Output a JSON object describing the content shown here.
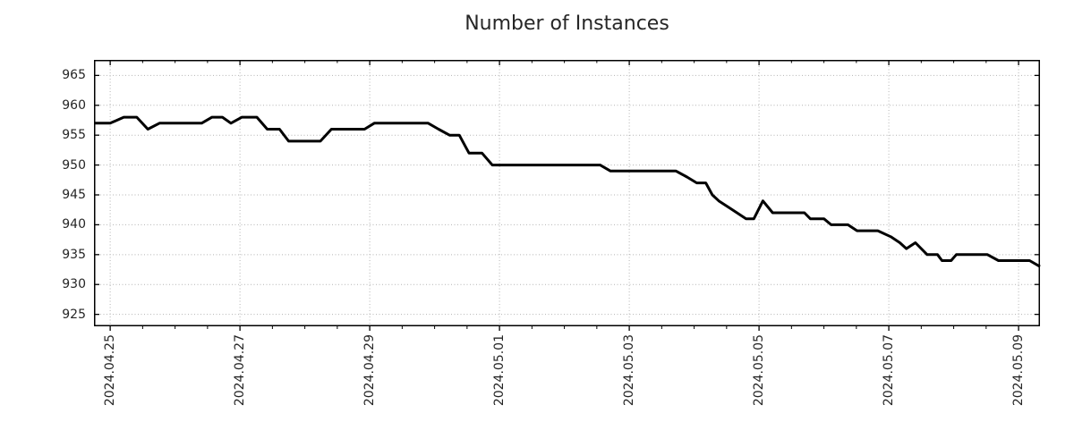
{
  "chart_data": {
    "type": "line",
    "title": "Number of Instances",
    "xlabel": "",
    "ylabel": "",
    "grid": "dotted",
    "legend": "none",
    "xlim_days": [
      -0.25,
      14.33
    ],
    "ylim": [
      923.0,
      967.6
    ],
    "x_axis": {
      "unit": "date",
      "major_tick_days": [
        0,
        2,
        4,
        6,
        8,
        10,
        12,
        14
      ],
      "major_tick_labels": [
        "2024.04.25",
        "2024.04.27",
        "2024.04.29",
        "2024.05.01",
        "2024.05.03",
        "2024.05.05",
        "2024.05.07",
        "2024.05.09"
      ],
      "minor_tick_interval_days": 0.5
    },
    "y_axis": {
      "ticks": [
        925,
        930,
        935,
        940,
        945,
        950,
        955,
        960,
        965
      ]
    },
    "series": [
      {
        "name": "instances",
        "color": "#000000",
        "line_width": 3,
        "points": [
          [
            -0.25,
            957
          ],
          [
            0.0,
            957
          ],
          [
            0.21,
            958
          ],
          [
            0.41,
            958
          ],
          [
            0.58,
            956
          ],
          [
            0.76,
            957
          ],
          [
            1.41,
            957
          ],
          [
            1.57,
            958
          ],
          [
            1.73,
            958
          ],
          [
            1.86,
            957
          ],
          [
            2.03,
            958
          ],
          [
            2.26,
            958
          ],
          [
            2.42,
            956
          ],
          [
            2.61,
            956
          ],
          [
            2.75,
            954
          ],
          [
            3.24,
            954
          ],
          [
            3.41,
            956
          ],
          [
            3.92,
            956
          ],
          [
            4.07,
            957
          ],
          [
            4.9,
            957
          ],
          [
            5.06,
            956
          ],
          [
            5.23,
            955
          ],
          [
            5.38,
            955
          ],
          [
            5.48,
            953
          ],
          [
            5.53,
            952
          ],
          [
            5.73,
            952
          ],
          [
            5.89,
            950
          ],
          [
            7.55,
            950
          ],
          [
            7.71,
            949
          ],
          [
            8.72,
            949
          ],
          [
            8.89,
            948
          ],
          [
            9.04,
            947
          ],
          [
            9.18,
            947
          ],
          [
            9.28,
            945
          ],
          [
            9.38,
            944
          ],
          [
            9.52,
            943
          ],
          [
            9.66,
            942
          ],
          [
            9.8,
            941
          ],
          [
            9.92,
            941
          ],
          [
            10.06,
            944
          ],
          [
            10.21,
            942
          ],
          [
            10.7,
            942
          ],
          [
            10.79,
            941
          ],
          [
            11.0,
            941
          ],
          [
            11.11,
            940
          ],
          [
            11.37,
            940
          ],
          [
            11.51,
            939
          ],
          [
            11.83,
            939
          ],
          [
            12.03,
            938
          ],
          [
            12.17,
            937
          ],
          [
            12.27,
            936
          ],
          [
            12.41,
            937
          ],
          [
            12.59,
            935
          ],
          [
            12.75,
            935
          ],
          [
            12.82,
            934
          ],
          [
            12.96,
            934
          ],
          [
            13.04,
            935
          ],
          [
            13.52,
            935
          ],
          [
            13.69,
            934
          ],
          [
            14.17,
            934
          ],
          [
            14.33,
            933
          ]
        ]
      }
    ]
  },
  "colors": {
    "background": "#ffffff",
    "grid": "#b3b3b3",
    "axis": "#000000",
    "text": "#262626",
    "line": "#000000"
  }
}
